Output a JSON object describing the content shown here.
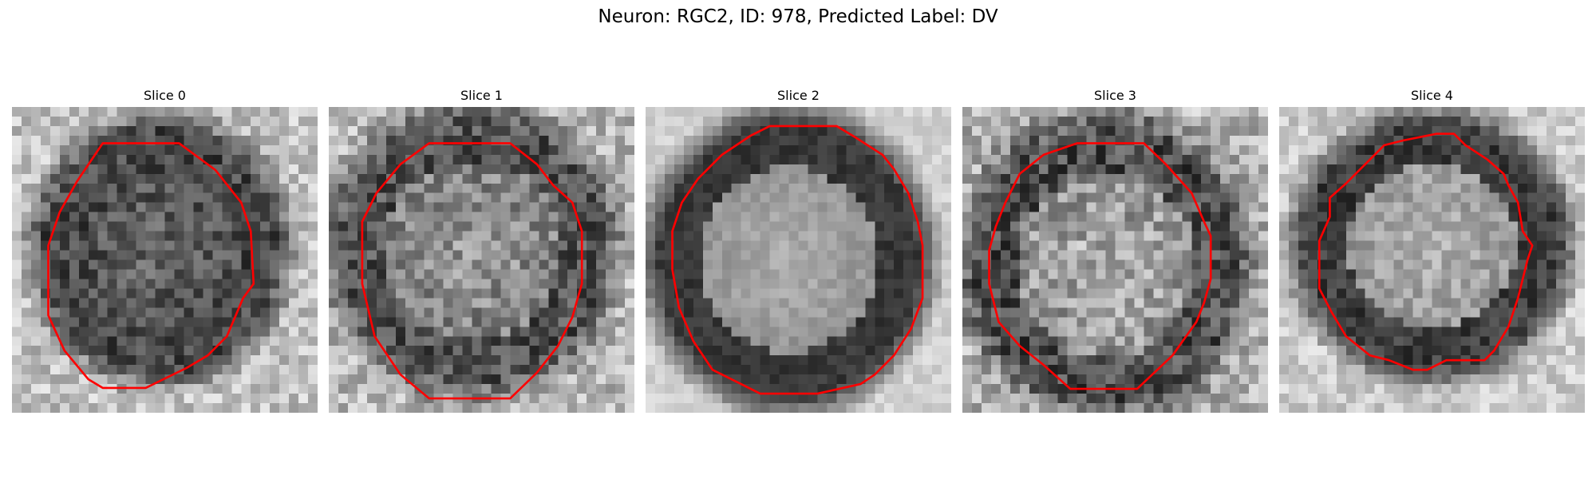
{
  "figure": {
    "title": "Neuron: RGC2, ID: 978, Predicted Label: DV",
    "contour_color": "#ff0000"
  },
  "panels": [
    {
      "title": "Slice 0"
    },
    {
      "title": "Slice 1"
    },
    {
      "title": "Slice 2"
    },
    {
      "title": "Slice 3"
    },
    {
      "title": "Slice 4"
    }
  ]
}
